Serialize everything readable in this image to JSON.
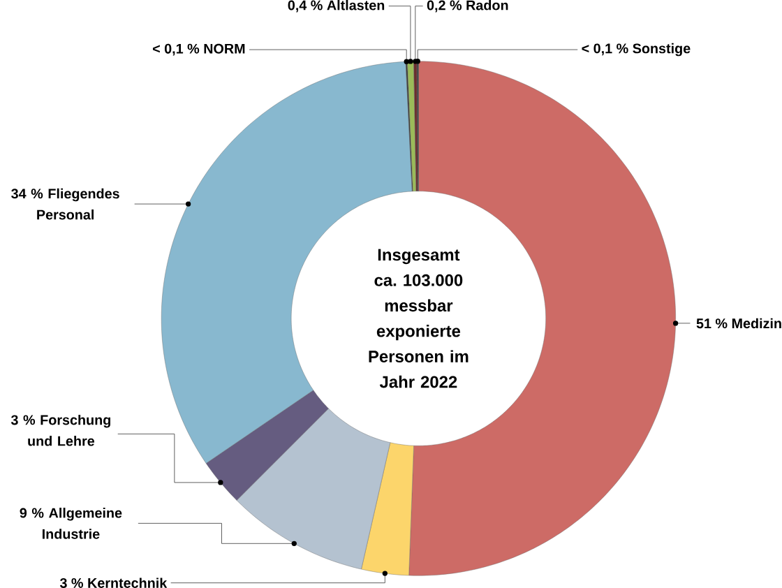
{
  "chart_data": {
    "type": "donut",
    "title": "Insgesamt ca. 103.000 messbar exponierte Personen im Jahr 2022",
    "categories": [
      "Medizin",
      "Kerntechnik",
      "Allgemeine Industrie",
      "Forschung und Lehre",
      "Fliegendes Personal",
      "NORM",
      "Altlasten",
      "Radon",
      "Sonstige"
    ],
    "values": [
      51,
      3,
      9,
      3,
      34,
      0.1,
      0.4,
      0.2,
      0.1
    ],
    "value_labels": [
      "51 %",
      "3 %",
      "9 %",
      "3 %",
      "34 %",
      "< 0,1 %",
      "0,4 %",
      "0,2 %",
      "< 0,1 %"
    ],
    "colors": [
      "#cd6b66",
      "#fcd56b",
      "#b4c2d0",
      "#655c80",
      "#88b8cf",
      "#3a3a3a",
      "#9bbb59",
      "#6b2e2e",
      "#3a3a3a"
    ]
  }
}
